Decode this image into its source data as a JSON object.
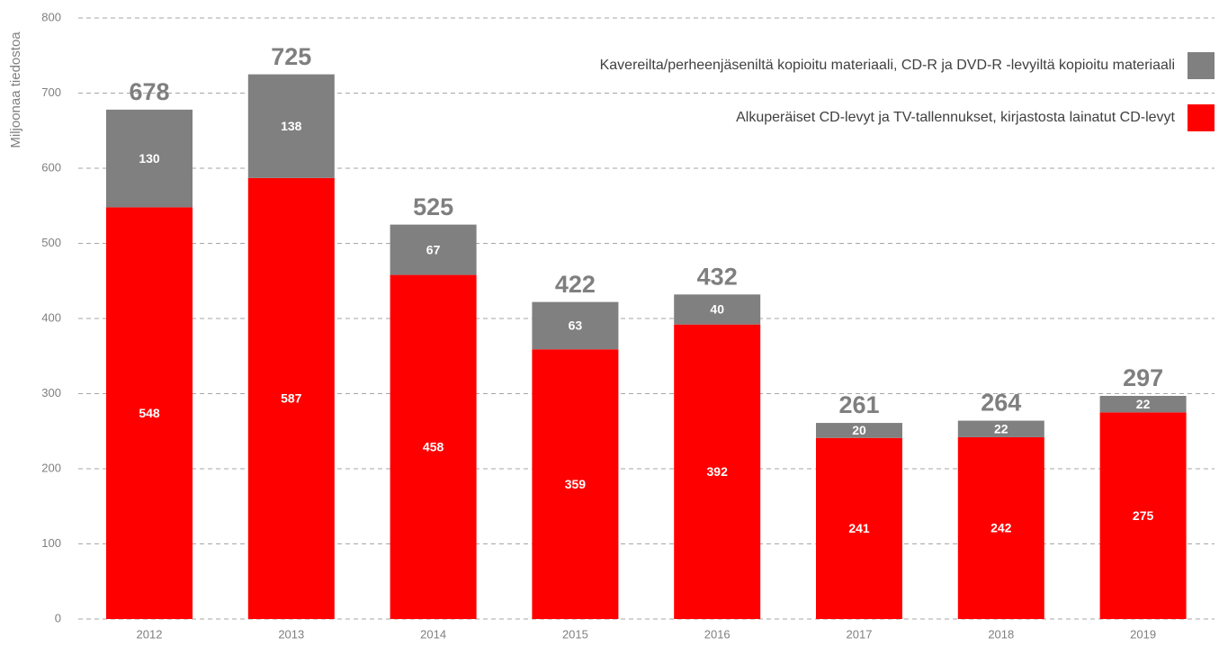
{
  "chart_data": {
    "type": "stacked_bar",
    "y_label": "Miljoonaa tiedostoa",
    "categories": [
      "2012",
      "2013",
      "2014",
      "2015",
      "2016",
      "2017",
      "2018",
      "2019"
    ],
    "series": [
      {
        "name": "Alkuperäiset CD-levyt ja TV-tallennukset, kirjastosta lainatut CD-levyt",
        "color": "#ff0000",
        "values": [
          548,
          587,
          458,
          359,
          392,
          241,
          242,
          275
        ]
      },
      {
        "name": "Kavereilta/perheenjäseniltä kopioitu materiaali, CD-R ja DVD-R -levyiltä kopioitu materiaali",
        "color": "#808080",
        "values": [
          130,
          138,
          67,
          63,
          40,
          20,
          22,
          22
        ]
      }
    ],
    "totals": [
      678,
      725,
      525,
      422,
      432,
      261,
      264,
      297
    ],
    "ylim": [
      0,
      800
    ],
    "yticks": [
      0,
      100,
      200,
      300,
      400,
      500,
      600,
      700,
      800
    ],
    "grid": true,
    "legend": "top-right"
  }
}
